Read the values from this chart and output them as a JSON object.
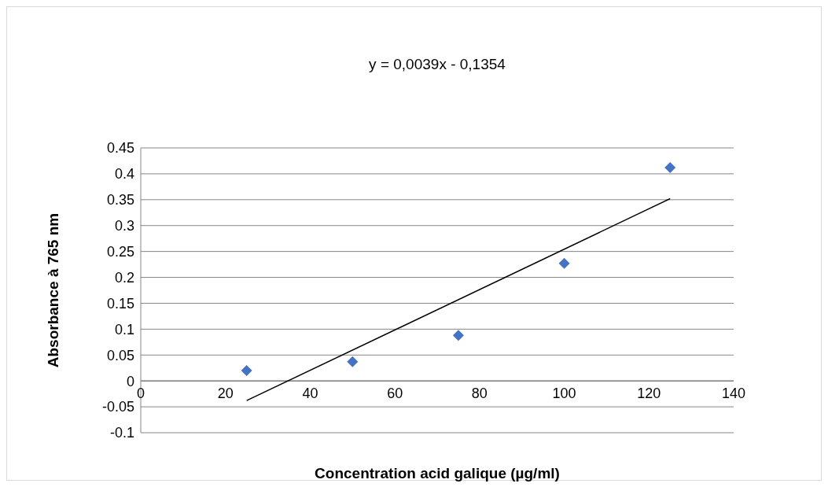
{
  "chart_data": {
    "type": "scatter",
    "annotations": [
      "y = 0,0039x - 0,1354"
    ],
    "xlabel": "Concentration acid galique (µg/ml)",
    "ylabel": "Absorbance à 765 nm",
    "series": [
      {
        "color": "#4472c4",
        "x": [
          25,
          50,
          75,
          100,
          125
        ],
        "values": [
          0.02,
          0.037,
          0.088,
          0.227,
          0.412
        ],
        "marker": "diamond"
      },
      {
        "type": "line",
        "color": "#000000",
        "x": [
          25,
          125
        ],
        "values": [
          -0.038,
          0.352
        ],
        "marker": "none"
      }
    ],
    "xlim": [
      0,
      140
    ],
    "xticks": [
      0,
      20,
      40,
      60,
      80,
      100,
      120,
      140
    ],
    "ylim": [
      -0.1,
      0.45
    ],
    "yticks": [
      -0.1,
      -0.05,
      0,
      0.05,
      0.1,
      0.15,
      0.2,
      0.25,
      0.3,
      0.35,
      0.4,
      0.45
    ],
    "grid": "y",
    "legend": false
  }
}
